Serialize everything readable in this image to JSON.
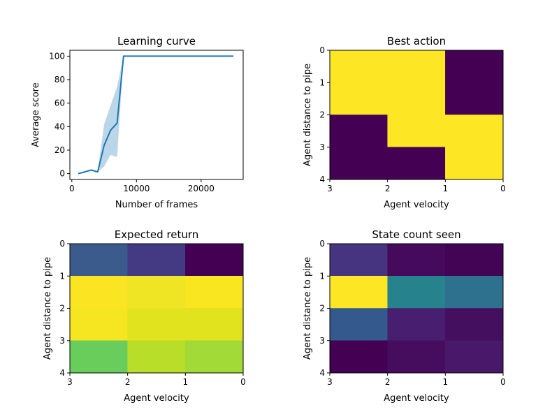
{
  "chart_data": [
    {
      "type": "line",
      "title": "Learning curve",
      "xlabel": "Number of frames",
      "ylabel": "Average score",
      "xlim": [
        -300,
        26500
      ],
      "ylim": [
        -5,
        105
      ],
      "xticks": [
        0,
        10000,
        20000
      ],
      "xtick_labels": [
        "0",
        "10000",
        "20000"
      ],
      "yticks": [
        0,
        20,
        40,
        60,
        80,
        100
      ],
      "ytick_labels": [
        "0",
        "20",
        "40",
        "60",
        "80",
        "100"
      ],
      "line_color": "#1f77b4",
      "band_color": "#1f77b4",
      "series": [
        {
          "x": [
            1000,
            2000,
            3000,
            4000,
            5000,
            6000,
            7000,
            8000,
            9000,
            10000,
            11000,
            12000,
            13000,
            14000,
            15000,
            16000,
            17000,
            18000,
            19000,
            20000,
            21000,
            22000,
            23000,
            24000,
            25000
          ],
          "y": [
            0,
            1.5,
            3,
            1.5,
            24,
            37,
            43,
            100,
            100,
            100,
            100,
            100,
            100,
            100,
            100,
            100,
            100,
            100,
            100,
            100,
            100,
            100,
            100,
            100,
            100
          ],
          "lower": [
            0,
            1.5,
            3,
            1.5,
            6,
            16,
            14,
            100,
            100,
            100,
            100,
            100,
            100,
            100,
            100,
            100,
            100,
            100,
            100,
            100,
            100,
            100,
            100,
            100,
            100
          ],
          "upper": [
            0,
            1.5,
            3,
            1.5,
            42,
            58,
            74,
            100,
            100,
            100,
            100,
            100,
            100,
            100,
            100,
            100,
            100,
            100,
            100,
            100,
            100,
            100,
            100,
            100,
            100
          ]
        }
      ]
    },
    {
      "type": "heatmap",
      "title": "Best action",
      "xlabel": "Agent velocity",
      "ylabel": "Agent distance to pipe",
      "x_tick_labels": [
        "3",
        "2",
        "1",
        "0"
      ],
      "y_tick_labels": [
        "0",
        "1",
        "2",
        "3",
        "4"
      ],
      "colormap": "viridis",
      "cells": [
        {
          "x0": 3,
          "x1": 1,
          "y0": 0,
          "y1": 2,
          "color": "#fde725"
        },
        {
          "x0": 1,
          "x1": 0,
          "y0": 0,
          "y1": 2,
          "color": "#440154"
        },
        {
          "x0": 3,
          "x1": 2,
          "y0": 2,
          "y1": 4,
          "color": "#440154"
        },
        {
          "x0": 2,
          "x1": 1,
          "y0": 2,
          "y1": 3,
          "color": "#fde725"
        },
        {
          "x0": 2,
          "x1": 1,
          "y0": 3,
          "y1": 4,
          "color": "#440154"
        },
        {
          "x0": 1,
          "x1": 0,
          "y0": 2,
          "y1": 4,
          "color": "#fde725"
        }
      ]
    },
    {
      "type": "heatmap",
      "title": "Expected return",
      "xlabel": "Agent velocity",
      "ylabel": "Agent distance to pipe",
      "x_tick_labels": [
        "3",
        "2",
        "1",
        "0"
      ],
      "y_tick_labels": [
        "0",
        "1",
        "2",
        "3",
        "4"
      ],
      "colormap": "viridis",
      "cells": [
        {
          "x0": 3,
          "x1": 2,
          "y0": 0,
          "y1": 1,
          "color": "#3b5b8c"
        },
        {
          "x0": 2,
          "x1": 1,
          "y0": 0,
          "y1": 1,
          "color": "#443983"
        },
        {
          "x0": 1,
          "x1": 0,
          "y0": 0,
          "y1": 1,
          "color": "#440154"
        },
        {
          "x0": 3,
          "x1": 2,
          "y0": 1,
          "y1": 2,
          "color": "#fbe523"
        },
        {
          "x0": 2,
          "x1": 1,
          "y0": 1,
          "y1": 2,
          "color": "#f0e524"
        },
        {
          "x0": 1,
          "x1": 0,
          "y0": 1,
          "y1": 2,
          "color": "#f9e621"
        },
        {
          "x0": 3,
          "x1": 2,
          "y0": 2,
          "y1": 3,
          "color": "#f6e620"
        },
        {
          "x0": 2,
          "x1": 1,
          "y0": 2,
          "y1": 3,
          "color": "#e1e31f"
        },
        {
          "x0": 1,
          "x1": 0,
          "y0": 2,
          "y1": 3,
          "color": "#e0e31e"
        },
        {
          "x0": 3,
          "x1": 2,
          "y0": 3,
          "y1": 4,
          "color": "#69cd5b"
        },
        {
          "x0": 2,
          "x1": 1,
          "y0": 3,
          "y1": 4,
          "color": "#b8de29"
        },
        {
          "x0": 1,
          "x1": 0,
          "y0": 3,
          "y1": 4,
          "color": "#a2da37"
        }
      ]
    },
    {
      "type": "heatmap",
      "title": "State count seen",
      "xlabel": "Agent velocity",
      "ylabel": "Agent distance to pipe",
      "x_tick_labels": [
        "3",
        "2",
        "1",
        "0"
      ],
      "y_tick_labels": [
        "0",
        "1",
        "2",
        "3",
        "4"
      ],
      "colormap": "viridis",
      "cells": [
        {
          "x0": 3,
          "x1": 2,
          "y0": 0,
          "y1": 1,
          "color": "#463480"
        },
        {
          "x0": 2,
          "x1": 1,
          "y0": 0,
          "y1": 1,
          "color": "#450a5c"
        },
        {
          "x0": 1,
          "x1": 0,
          "y0": 0,
          "y1": 1,
          "color": "#440456"
        },
        {
          "x0": 3,
          "x1": 2,
          "y0": 1,
          "y1": 2,
          "color": "#fde725"
        },
        {
          "x0": 2,
          "x1": 1,
          "y0": 1,
          "y1": 2,
          "color": "#26838e"
        },
        {
          "x0": 1,
          "x1": 0,
          "y0": 1,
          "y1": 2,
          "color": "#2d718e"
        },
        {
          "x0": 3,
          "x1": 2,
          "y0": 2,
          "y1": 3,
          "color": "#34598c"
        },
        {
          "x0": 2,
          "x1": 1,
          "y0": 2,
          "y1": 3,
          "color": "#481f70"
        },
        {
          "x0": 1,
          "x1": 0,
          "y0": 2,
          "y1": 3,
          "color": "#450f5f"
        },
        {
          "x0": 3,
          "x1": 2,
          "y0": 3,
          "y1": 4,
          "color": "#440154"
        },
        {
          "x0": 2,
          "x1": 1,
          "y0": 3,
          "y1": 4,
          "color": "#460d5e"
        },
        {
          "x0": 1,
          "x1": 0,
          "y0": 3,
          "y1": 4,
          "color": "#48196a"
        }
      ]
    }
  ]
}
